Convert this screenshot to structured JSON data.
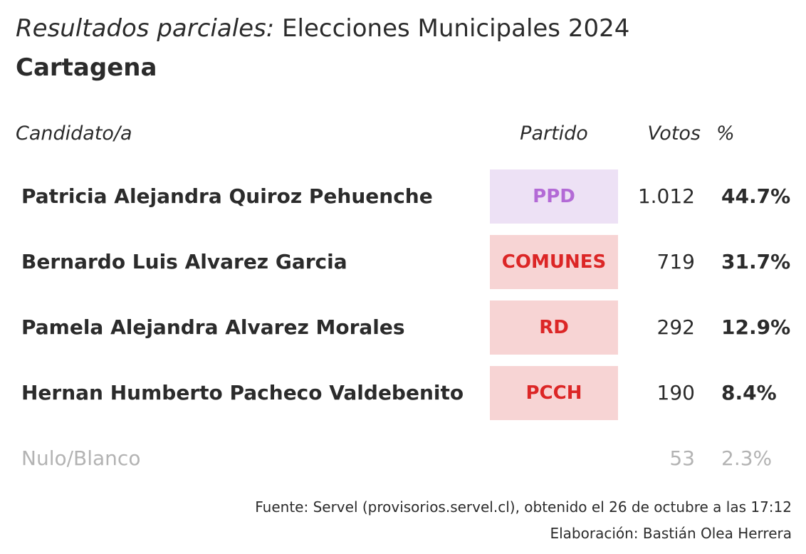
{
  "header": {
    "title_italic": "Resultados parciales:",
    "title_rest": " Elecciones Municipales 2024",
    "subtitle": "Cartagena"
  },
  "columns": {
    "candidate": "Candidato/a",
    "party": "Partido",
    "votes": "Votos",
    "percent": "%"
  },
  "chart_data": {
    "type": "table",
    "title": "Resultados parciales: Elecciones Municipales 2024",
    "subtitle": "Cartagena",
    "columns": [
      "Candidato/a",
      "Partido",
      "Votos",
      "%"
    ],
    "rows": [
      {
        "candidate": "Patricia Alejandra Quiroz Pehuenche",
        "party": "PPD",
        "votes": "1.012",
        "percent": "44.7%",
        "party_bg": "#ede1f5",
        "party_color": "#b36ad6"
      },
      {
        "candidate": "Bernardo Luis Alvarez Garcia",
        "party": "COMUNES",
        "votes": "719",
        "percent": "31.7%",
        "party_bg": "#f7d4d4",
        "party_color": "#dc2626"
      },
      {
        "candidate": "Pamela Alejandra Alvarez Morales",
        "party": "RD",
        "votes": "292",
        "percent": "12.9%",
        "party_bg": "#f7d4d4",
        "party_color": "#dc2626"
      },
      {
        "candidate": "Hernan Humberto Pacheco Valdebenito",
        "party": "PCCH",
        "votes": "190",
        "percent": "8.4%",
        "party_bg": "#f7d4d4",
        "party_color": "#dc2626"
      }
    ],
    "null_row": {
      "label": "Nulo/Blanco",
      "votes": "53",
      "percent": "2.3%",
      "color": "#b3b3b3"
    }
  },
  "footer": {
    "source": "Fuente: Servel (provisorios.servel.cl), obtenido el 26 de octubre a las 17:12",
    "credit": "Elaboración: Bastián Olea Herrera"
  }
}
